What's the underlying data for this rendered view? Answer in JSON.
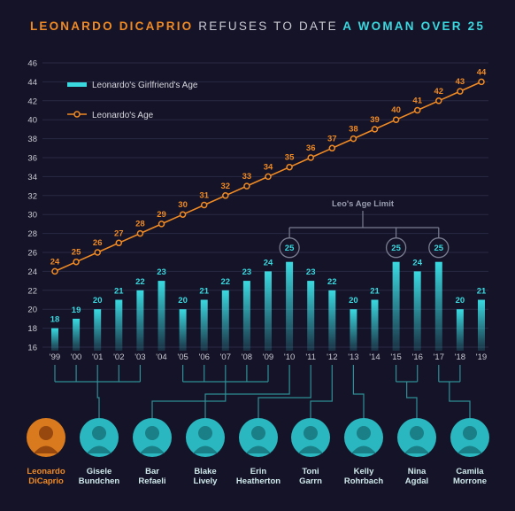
{
  "title": {
    "part1": "LEONARDO DICAPRIO",
    "part2": "REFUSES TO DATE",
    "part3": "A WOMAN OVER 25"
  },
  "colors": {
    "background": "#141327",
    "orange": "#f08a24",
    "cyan": "#3ad9e0",
    "grid": "#2a2a44",
    "text": "#c9c9d3"
  },
  "chart_data": {
    "type": "bar",
    "categories": [
      "'99",
      "'00",
      "'01",
      "'02",
      "'03",
      "'04",
      "'05",
      "'06",
      "'07",
      "'08",
      "'09",
      "'10",
      "'11",
      "'12",
      "'13",
      "'14",
      "'15",
      "'16",
      "'17",
      "'18",
      "'19"
    ],
    "series": [
      {
        "name": "Leonardo's Girlfriend's Age",
        "type": "bar",
        "values": [
          18,
          19,
          20,
          21,
          22,
          23,
          20,
          21,
          22,
          23,
          24,
          25,
          23,
          22,
          20,
          21,
          25,
          24,
          25,
          20,
          21
        ]
      },
      {
        "name": "Leonardo's Age",
        "type": "line",
        "values": [
          24,
          25,
          26,
          27,
          28,
          29,
          30,
          31,
          32,
          33,
          34,
          35,
          36,
          37,
          38,
          39,
          40,
          41,
          42,
          43,
          44
        ]
      }
    ],
    "yticks": [
      16,
      18,
      20,
      22,
      24,
      26,
      28,
      30,
      32,
      34,
      36,
      38,
      40,
      42,
      44,
      46
    ],
    "ylim": [
      16,
      46
    ],
    "annotation": "Leo's Age Limit",
    "highlighted_indices": [
      11,
      16,
      18
    ],
    "legend_position": "top-left"
  },
  "people": [
    {
      "first": "Leonardo",
      "last": "DiCaprio",
      "years": [],
      "color": "orange"
    },
    {
      "first": "Gisele",
      "last": "Bundchen",
      "years": [
        0,
        1,
        2,
        3,
        4
      ]
    },
    {
      "first": "Bar",
      "last": "Refaeli",
      "years": [
        6,
        7,
        8,
        9,
        10
      ]
    },
    {
      "first": "Blake",
      "last": "Lively",
      "years": [
        11
      ]
    },
    {
      "first": "Erin",
      "last": "Heatherton",
      "years": [
        12
      ]
    },
    {
      "first": "Toni",
      "last": "Garrn",
      "years": [
        13
      ]
    },
    {
      "first": "Kelly",
      "last": "Rohrbach",
      "years": [
        14
      ]
    },
    {
      "first": "Nina",
      "last": "Agdal",
      "years": [
        16,
        17
      ]
    },
    {
      "first": "Camila",
      "last": "Morrone",
      "years": [
        18,
        19
      ]
    }
  ]
}
